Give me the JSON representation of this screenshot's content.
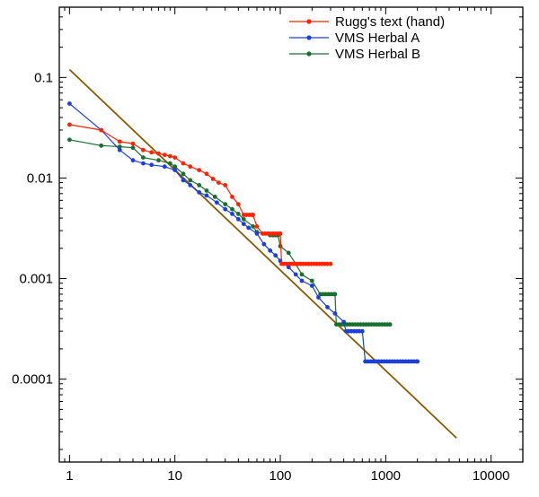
{
  "chart_data": {
    "type": "line",
    "title": "",
    "xlabel": "",
    "ylabel": "",
    "xscale": "log",
    "yscale": "log",
    "xlim": [
      0.8,
      20000
    ],
    "ylim": [
      1.5e-05,
      0.5
    ],
    "grid": false,
    "legend_position": "top-right",
    "x_ticks": [
      {
        "value": 1,
        "label": "1"
      },
      {
        "value": 10,
        "label": "10"
      },
      {
        "value": 100,
        "label": "100"
      },
      {
        "value": 1000,
        "label": "1000"
      },
      {
        "value": 10000,
        "label": "10000"
      }
    ],
    "y_ticks": [
      {
        "value": 0.1,
        "label": "0.1"
      },
      {
        "value": 0.01,
        "label": "0.01"
      },
      {
        "value": 0.001,
        "label": "0.001"
      },
      {
        "value": 0.0001,
        "label": "0.0001"
      }
    ],
    "series": [
      {
        "name": "Rugg's text (hand)",
        "color": "#ff2200",
        "points": [
          [
            1,
            0.034
          ],
          [
            2,
            0.03
          ],
          [
            3,
            0.023
          ],
          [
            4,
            0.022
          ],
          [
            5,
            0.019
          ],
          [
            6,
            0.018
          ],
          [
            7,
            0.0175
          ],
          [
            8,
            0.017
          ],
          [
            9,
            0.0165
          ],
          [
            10,
            0.016
          ],
          [
            12,
            0.014
          ],
          [
            14,
            0.013
          ],
          [
            17,
            0.012
          ],
          [
            20,
            0.011
          ],
          [
            23,
            0.0098
          ],
          [
            26,
            0.009
          ],
          [
            30,
            0.0085
          ],
          [
            35,
            0.0065
          ],
          [
            40,
            0.0055
          ],
          [
            45,
            0.0043
          ],
          [
            55,
            0.0043
          ],
          [
            60,
            0.0033
          ],
          [
            68,
            0.0028
          ],
          [
            100,
            0.0028
          ],
          [
            103,
            0.0014
          ],
          [
            300,
            0.0014
          ]
        ]
      },
      {
        "name": "VMS Herbal A",
        "color": "#1a3fe0",
        "points": [
          [
            1,
            0.055
          ],
          [
            2,
            0.03
          ],
          [
            3,
            0.019
          ],
          [
            4,
            0.015
          ],
          [
            5,
            0.014
          ],
          [
            6,
            0.0135
          ],
          [
            8,
            0.013
          ],
          [
            10,
            0.012
          ],
          [
            12,
            0.0095
          ],
          [
            14,
            0.0085
          ],
          [
            17,
            0.0072
          ],
          [
            20,
            0.0067
          ],
          [
            25,
            0.0057
          ],
          [
            30,
            0.0049
          ],
          [
            35,
            0.0044
          ],
          [
            40,
            0.0039
          ],
          [
            45,
            0.0035
          ],
          [
            50,
            0.0032
          ],
          [
            60,
            0.0028
          ],
          [
            70,
            0.0022
          ],
          [
            80,
            0.0019
          ],
          [
            90,
            0.0017
          ],
          [
            100,
            0.0015
          ],
          [
            120,
            0.0013
          ],
          [
            140,
            0.0011
          ],
          [
            160,
            0.00095
          ],
          [
            200,
            0.00085
          ],
          [
            230,
            0.00065
          ],
          [
            280,
            0.00052
          ],
          [
            330,
            0.00045
          ],
          [
            400,
            0.00037
          ],
          [
            420,
            0.0003
          ],
          [
            600,
            0.0003
          ],
          [
            640,
            0.00015
          ],
          [
            2000,
            0.00015
          ]
        ]
      },
      {
        "name": "VMS Herbal B",
        "color": "#1a6e2e",
        "points": [
          [
            1,
            0.024
          ],
          [
            2,
            0.021
          ],
          [
            3,
            0.0205
          ],
          [
            4,
            0.02
          ],
          [
            5,
            0.016
          ],
          [
            7,
            0.015
          ],
          [
            9,
            0.014
          ],
          [
            10,
            0.013
          ],
          [
            12,
            0.011
          ],
          [
            14,
            0.0095
          ],
          [
            17,
            0.0085
          ],
          [
            20,
            0.0075
          ],
          [
            24,
            0.0065
          ],
          [
            30,
            0.0055
          ],
          [
            35,
            0.0049
          ],
          [
            40,
            0.0044
          ],
          [
            45,
            0.0039
          ],
          [
            55,
            0.0033
          ],
          [
            60,
            0.0029
          ],
          [
            80,
            0.0027
          ],
          [
            95,
            0.0027
          ],
          [
            100,
            0.0021
          ],
          [
            120,
            0.0018
          ],
          [
            140,
            0.0014
          ],
          [
            160,
            0.0011
          ],
          [
            200,
            0.00095
          ],
          [
            240,
            0.0007
          ],
          [
            330,
            0.0007
          ],
          [
            340,
            0.00035
          ],
          [
            1100,
            0.00035
          ]
        ]
      }
    ],
    "reference_line": {
      "color": "#8b5a00",
      "points": [
        [
          1,
          0.12
        ],
        [
          4700,
          2.6e-05
        ]
      ]
    }
  }
}
